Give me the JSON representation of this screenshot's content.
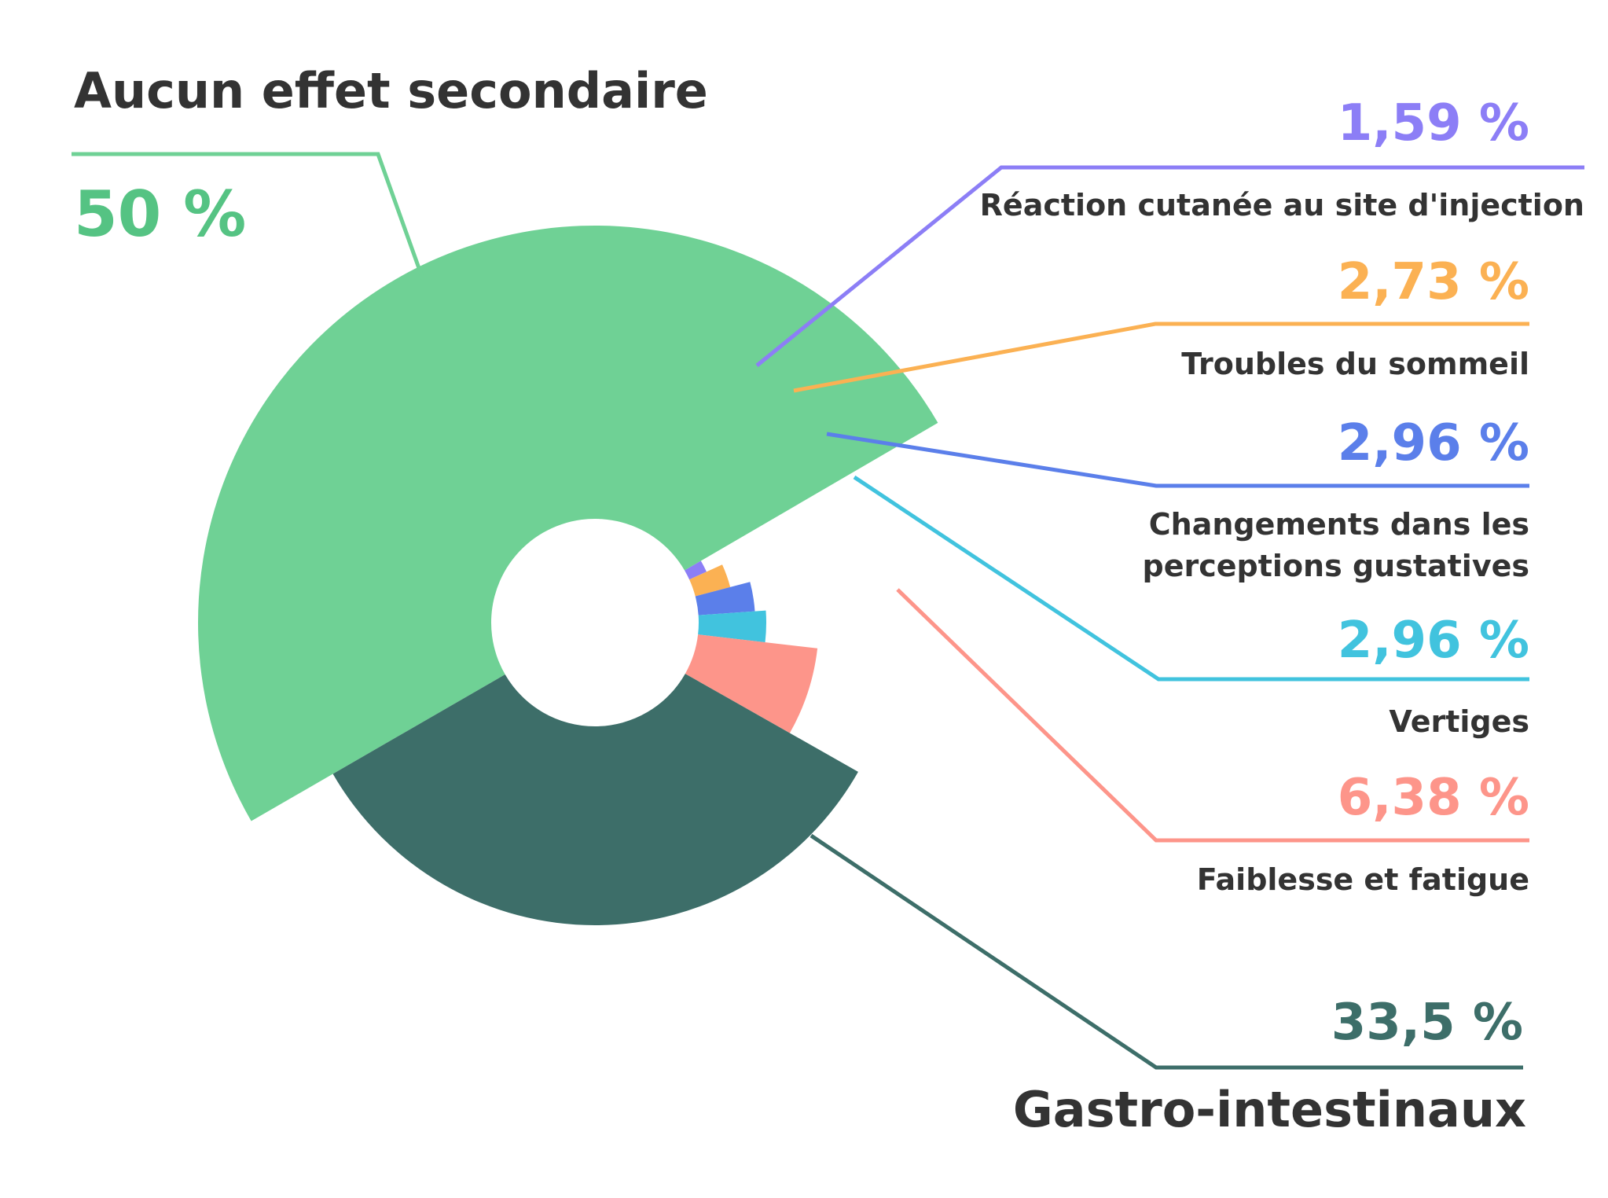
{
  "chart_data": {
    "type": "pie",
    "variant": "variable-radius donut",
    "title": "",
    "slices": [
      {
        "label": "Aucun effet secondaire",
        "value": 50,
        "display": "50 %",
        "color": "#6fd195",
        "pct_color": "#55c383",
        "label_color": "#333333"
      },
      {
        "label": "Réaction cutanée au site d'injection",
        "value": 1.59,
        "display": "1,59 %",
        "color": "#8c7ef6",
        "pct_color": "#8c7ef6",
        "label_color": "#333333"
      },
      {
        "label": "Troubles du sommeil",
        "value": 2.73,
        "display": "2,73 %",
        "color": "#fbb153",
        "pct_color": "#fbb153",
        "label_color": "#333333"
      },
      {
        "label": "Changements dans les perceptions gustatives",
        "value": 2.96,
        "display": "2,96 %",
        "color": "#5b7fea",
        "pct_color": "#5b7fea",
        "label_color": "#333333"
      },
      {
        "label": "Vertiges",
        "value": 2.96,
        "display": "2,96 %",
        "color": "#41c3de",
        "pct_color": "#41c3de",
        "label_color": "#333333"
      },
      {
        "label": "Faiblesse et fatigue",
        "value": 6.38,
        "display": "6,38 %",
        "color": "#fd958a",
        "pct_color": "#fd958a",
        "label_color": "#333333"
      },
      {
        "label": "Gastro-intestinaux",
        "value": 33.5,
        "display": "33,5 %",
        "color": "#3d6e69",
        "pct_color": "#3d6e69",
        "label_color": "#333333"
      }
    ]
  }
}
